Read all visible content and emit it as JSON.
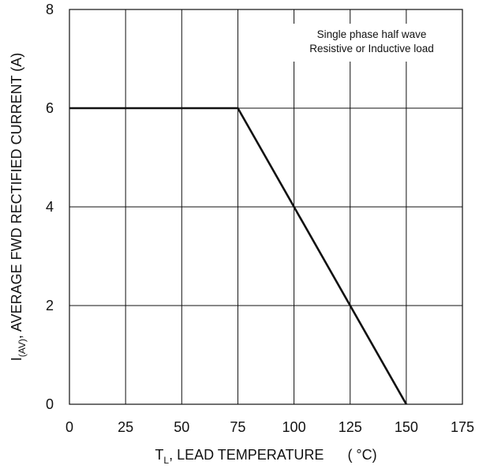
{
  "chart_data": {
    "type": "line",
    "xlim": [
      0,
      175
    ],
    "ylim": [
      0,
      8
    ],
    "x_ticks": [
      "0",
      "25",
      "50",
      "75",
      "100",
      "125",
      "150",
      "175"
    ],
    "y_ticks": [
      "0",
      "2",
      "4",
      "6",
      "8"
    ],
    "grid": true,
    "xlabel": {
      "main": "T",
      "sub": "L",
      "rest": ", LEAD TEMPERATURE",
      "unit": "(  °C)"
    },
    "ylabel": {
      "main": "I",
      "sub": "(AV)",
      "rest": ", AVERAGE FWD RECTIFIED CURRENT (A)"
    },
    "annotation": [
      "Single phase half wave",
      "Resistive or Inductive load"
    ],
    "series": [
      {
        "x": [
          0,
          75,
          150
        ],
        "y": [
          6,
          6,
          0
        ]
      }
    ]
  }
}
